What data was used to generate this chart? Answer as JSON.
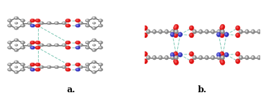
{
  "background_color": "#ffffff",
  "figsize": [
    3.8,
    1.38
  ],
  "dpi": 100,
  "panel_a_label": "a.",
  "panel_b_label": "b.",
  "label_fontsize": 9,
  "label_fontweight": "bold",
  "C_color": "#888888",
  "O_color": "#dd1111",
  "N_color": "#3333bb",
  "H_color": "#cccccc",
  "bond_cov": "#555555",
  "bond_hbond": "#88ccbb",
  "atom_edge": "#333333"
}
